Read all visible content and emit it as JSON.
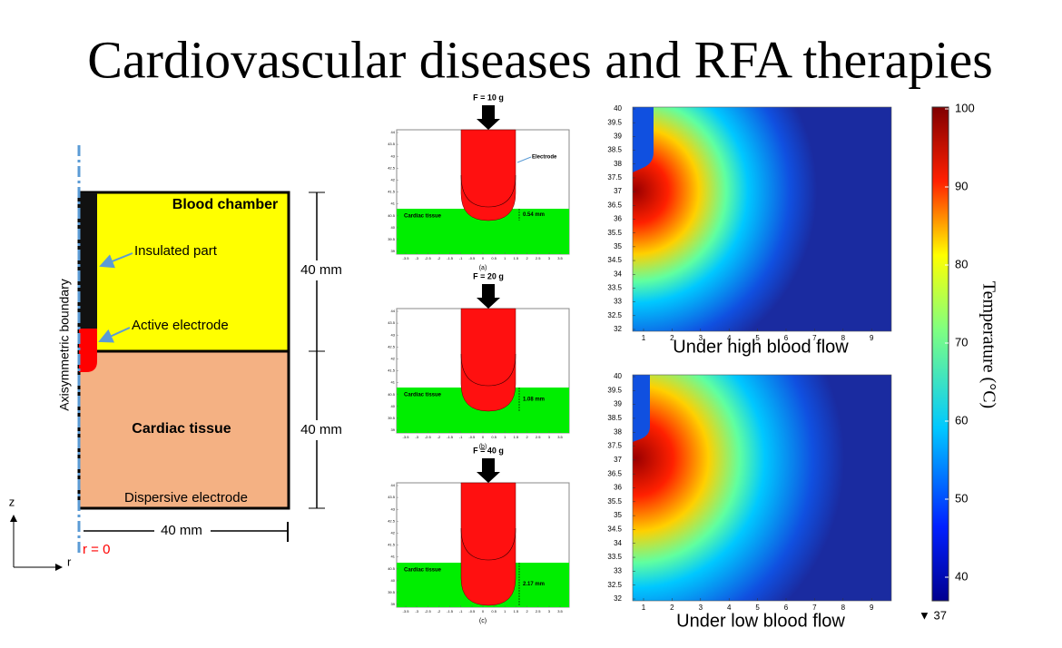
{
  "title": "Cardiovascular diseases and RFA therapies",
  "left_diagram": {
    "blood_chamber": "Blood chamber",
    "insulated_part": "Insulated part",
    "active_electrode": "Active electrode",
    "cardiac_tissue": "Cardiac tissue",
    "dispersive_electrode": "Dispersive electrode",
    "axis_label": "Axisymmetric boundary",
    "height_top": "40 mm",
    "height_bottom": "40 mm",
    "width": "40 mm",
    "r_zero": "r = 0",
    "z_axis": "z",
    "r_axis": "r"
  },
  "middle_panels": {
    "yticks": [
      44,
      43.5,
      43,
      42.5,
      42,
      41.5,
      41,
      40.5,
      40,
      39.5,
      39
    ],
    "xticks": [
      -3.5,
      -3,
      -2.5,
      -2,
      -1.5,
      -1,
      -0.5,
      0,
      0.5,
      1,
      1.5,
      2,
      2.5,
      3,
      3.5
    ],
    "electrode_label": "Electrode",
    "tissue_label": "Cardiac tissue",
    "panels": [
      {
        "force": "F = 10 g",
        "depth": "0.54 mm",
        "caption": "(a)"
      },
      {
        "force": "F = 20 g",
        "depth": "1.08 mm",
        "caption": "(b)"
      },
      {
        "force": "F = 40 g",
        "depth": "2.17 mm",
        "caption": "(c)"
      }
    ]
  },
  "heatmaps": {
    "yticks": [
      40,
      39.5,
      39,
      38.5,
      38,
      37.5,
      37,
      36.5,
      36,
      35.5,
      35,
      34.5,
      34,
      33.5,
      33,
      32.5,
      32
    ],
    "xticks": [
      1,
      2,
      3,
      4,
      5,
      6,
      7,
      8,
      9
    ],
    "captions": [
      "Under high blood flow",
      "Under low blood flow"
    ]
  },
  "colorbar": {
    "ticks": [
      100,
      90,
      80,
      70,
      60,
      50,
      40
    ],
    "label": "Temperature (°C)",
    "min_label": "▼ 37"
  }
}
